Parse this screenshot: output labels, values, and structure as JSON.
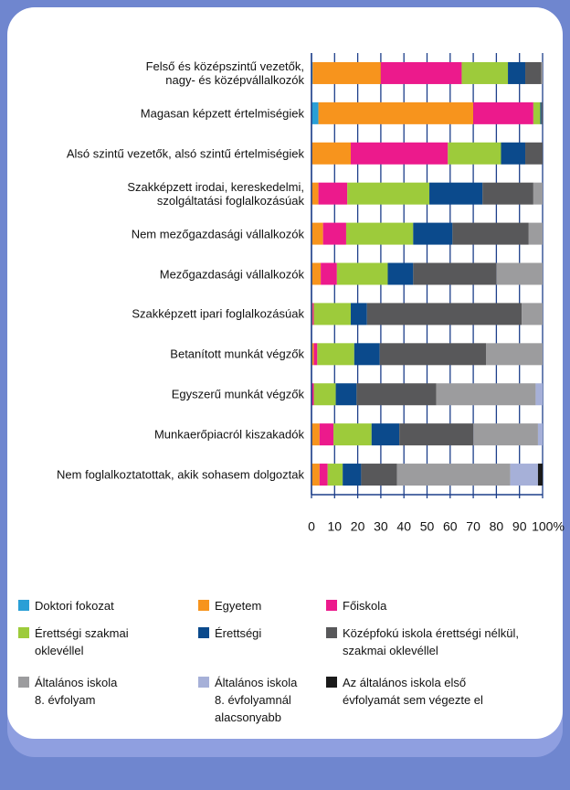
{
  "chart_data": {
    "type": "stacked_bar_horizontal",
    "categories": [
      "Felső és középszintű vezetők,\nnagy- és középvállalkozók",
      "Magasan képzett értelmiségiek",
      "Alsó szintű vezetők, alsó szintű értelmiségiek",
      "Szakképzett irodai, kereskedelmi,\nszolgáltatási foglalkozásúak",
      "Nem mezőgazdasági vállalkozók",
      "Mezőgazdasági vállalkozók",
      "Szakképzett ipari foglalkozásúak",
      "Betanított munkát végzők",
      "Egyszerű munkát végzők",
      "Munkaerőpiacról kiszakadók",
      "Nem foglalkoztatottak, akik sohasem dolgoztak"
    ],
    "series": [
      {
        "name": "Doktori fokozat",
        "color": "#2a9fd6",
        "values": [
          0.5,
          3,
          0,
          0,
          0,
          0,
          0,
          0,
          0,
          0,
          0
        ]
      },
      {
        "name": "Egyetem",
        "color": "#f7941d",
        "values": [
          29.5,
          67,
          17,
          3,
          5,
          4,
          0.5,
          1,
          0,
          3.5,
          3.5
        ]
      },
      {
        "name": "Főiskola",
        "color": "#ec1a8c",
        "values": [
          35,
          26,
          42,
          12.5,
          10,
          7,
          0.5,
          1.5,
          1,
          6,
          3.5
        ]
      },
      {
        "name": "Érettségi szakmai\noklevéllel",
        "color": "#9dcb3b",
        "values": [
          20,
          3,
          23,
          35.5,
          29,
          22,
          16,
          16,
          9.5,
          16.5,
          6.5
        ]
      },
      {
        "name": "Érettségi",
        "color": "#0b4a8c",
        "values": [
          7.5,
          0.5,
          10.5,
          23,
          17,
          11,
          7,
          11,
          9,
          12,
          8
        ]
      },
      {
        "name": "Középfokú iskola érettségi nélkül,\nszakmai oklevéllel",
        "color": "#58585a",
        "values": [
          7,
          0.5,
          7.5,
          22,
          33,
          36,
          67,
          46,
          34.5,
          32,
          15.5
        ]
      },
      {
        "name": "Általános iskola\n8. évfolyam",
        "color": "#9c9c9e",
        "values": [
          0.5,
          0,
          0,
          4,
          6,
          20,
          9,
          24.5,
          43,
          28,
          49
        ]
      },
      {
        "name": "Általános iskola\n8. évfolyamnál\nalacsonyabb",
        "color": "#a6b0d8",
        "values": [
          0,
          0,
          0,
          0,
          0,
          0,
          0,
          0,
          3,
          2,
          12
        ]
      },
      {
        "name": "Az általános iskola első\névfolyamát sem végezte el",
        "color": "#1a1a1a",
        "values": [
          0,
          0,
          0,
          0,
          0,
          0,
          0,
          0,
          0,
          0,
          2
        ]
      }
    ],
    "xlim": [
      0,
      100
    ],
    "xticks": [
      0,
      10,
      20,
      30,
      40,
      50,
      60,
      70,
      80,
      90,
      {
        "value": 100,
        "label": "100%"
      }
    ],
    "grid": true
  }
}
